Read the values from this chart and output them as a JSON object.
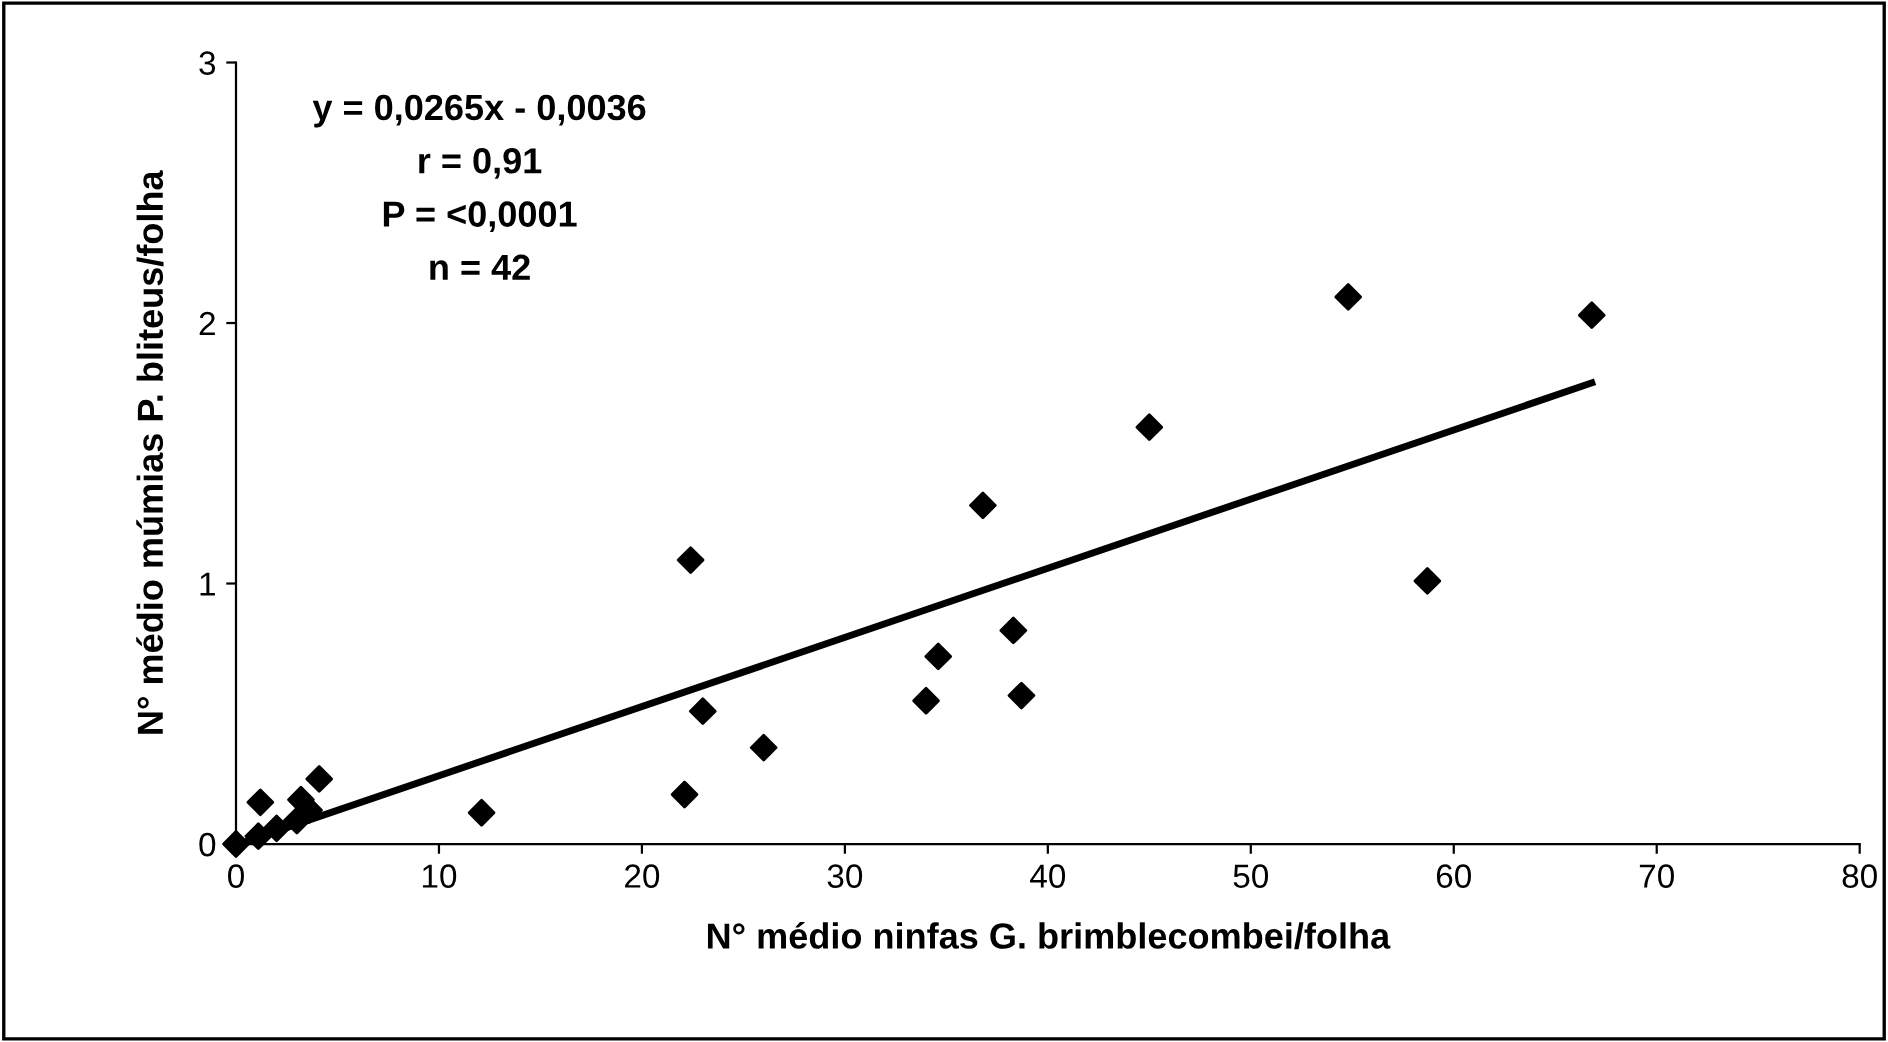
{
  "chart_data": {
    "type": "scatter",
    "xlabel": "N° médio ninfas G. brimblecombei/folha",
    "ylabel": "N° médio múmias P. bliteus/folha",
    "annotations": [
      "y = 0,0265x - 0,0036\nr = 0,91\nP = <0,0001\nn = 42"
    ],
    "series": [
      {
        "color": "#000000",
        "marker": "diamond",
        "x": [
          12.1,
          22.1,
          22.4,
          23.0,
          26.0,
          34.0,
          34.6,
          36.8,
          38.3,
          38.7,
          45.0,
          54.8,
          58.7,
          66.8,
          1.2,
          4.1,
          3.2,
          3.6,
          3.0,
          2.0,
          0.0,
          1.1
        ],
        "values": [
          0.12,
          0.19,
          1.09,
          0.51,
          0.37,
          0.55,
          0.72,
          1.3,
          0.82,
          0.57,
          1.6,
          2.1,
          1.01,
          2.03,
          0.16,
          0.25,
          0.17,
          0.13,
          0.09,
          0.06,
          0.0,
          0.03
        ]
      },
      {
        "type": "line",
        "color": "#000000",
        "line_style": "solid",
        "x": [
          0.5,
          66.8
        ],
        "values": [
          0.01,
          1.77
        ]
      }
    ],
    "xlim": [
      0,
      80
    ],
    "xticks": [
      0,
      10,
      20,
      30,
      40,
      50,
      60,
      70,
      80
    ],
    "ylim": [
      0,
      3
    ],
    "yticks": [
      0,
      1,
      2,
      3
    ],
    "grid": false
  }
}
